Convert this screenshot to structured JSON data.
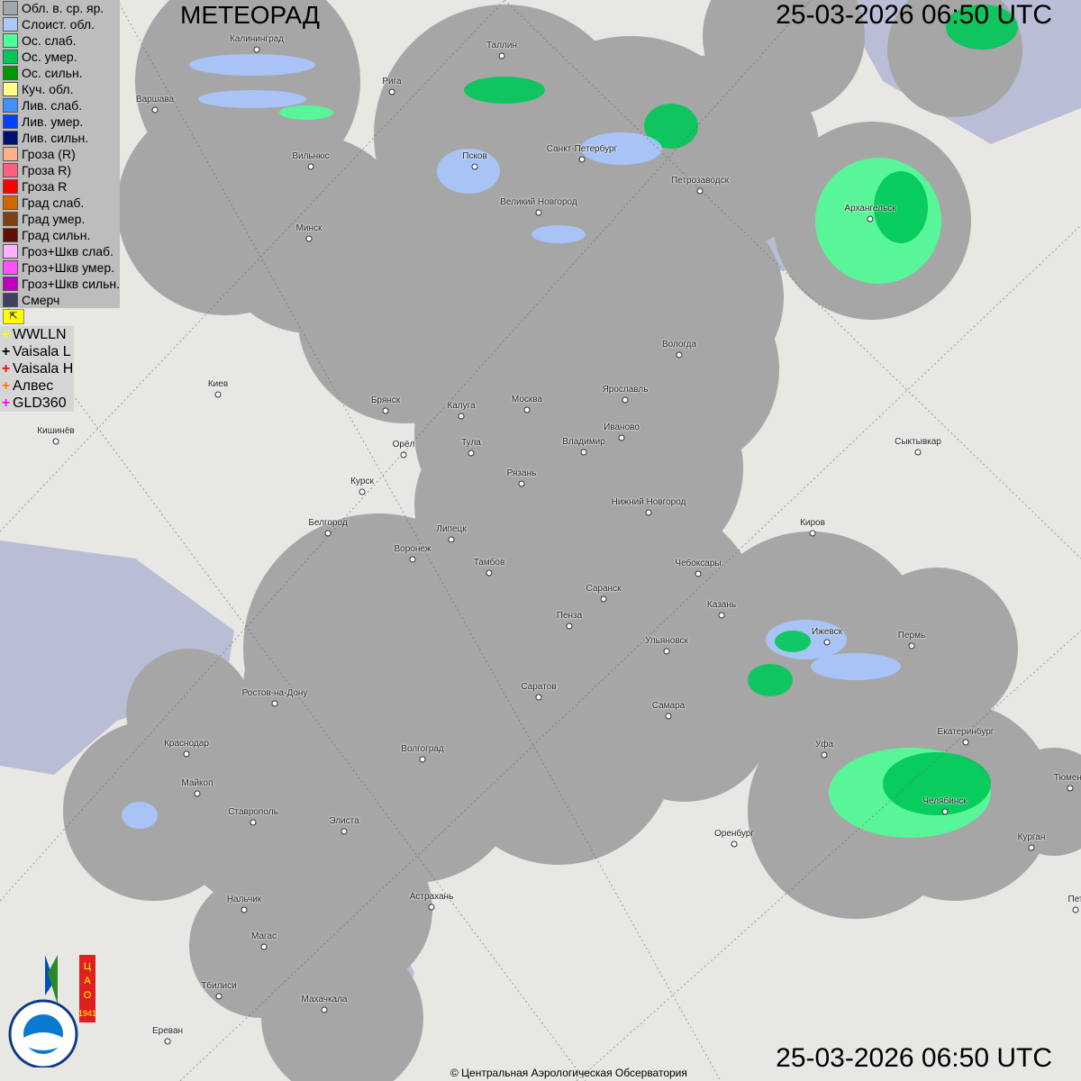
{
  "header": {
    "title": "МЕТЕОРАД",
    "timestamp_top": "25-03-2026  06:50 UTC",
    "timestamp_bottom": "25-03-2026  06:50 UTC"
  },
  "legend": [
    {
      "label": "Обл. в. ср. яр.",
      "color": "#a0a8ac"
    },
    {
      "label": "Слоист. обл.",
      "color": "#a8c8ff"
    },
    {
      "label": "Ос. слаб.",
      "color": "#50ff98"
    },
    {
      "label": "Ос. умер.",
      "color": "#00c858"
    },
    {
      "label": "Ос. сильн.",
      "color": "#009800"
    },
    {
      "label": "Куч. обл.",
      "color": "#ffff88"
    },
    {
      "label": "Лив. слаб.",
      "color": "#4090ff"
    },
    {
      "label": "Лив. умер.",
      "color": "#0040ff"
    },
    {
      "label": "Лив. сильн.",
      "color": "#001070"
    },
    {
      "label": "Гроза (R)",
      "color": "#ffb088"
    },
    {
      "label": "Гроза R)",
      "color": "#ff6080"
    },
    {
      "label": "Гроза R",
      "color": "#ff0000"
    },
    {
      "label": "Град слаб.",
      "color": "#d06800"
    },
    {
      "label": "Град умер.",
      "color": "#804010"
    },
    {
      "label": "Град сильн.",
      "color": "#601008"
    },
    {
      "label": "Гроз+Шкв слаб.",
      "color": "#ffb0ff"
    },
    {
      "label": "Гроз+Шкв умер.",
      "color": "#ff50ff"
    },
    {
      "label": "Гроз+Шкв сильн.",
      "color": "#c000c0"
    },
    {
      "label": "Смерч",
      "color": "#404060"
    }
  ],
  "lightning": [
    {
      "label": "WWLLN",
      "color": "#ffff00"
    },
    {
      "label": "Vaisala L",
      "color": "#000000"
    },
    {
      "label": "Vaisala H",
      "color": "#ff0000"
    },
    {
      "label": "Алвес",
      "color": "#ff8000"
    },
    {
      "label": "GLD360",
      "color": "#ff00ff"
    }
  ],
  "cities": [
    "Калининград",
    "Рига",
    "Таллин",
    "Варшава",
    "Вильнюс",
    "Псков",
    "Санкт-Петербург",
    "Петрозаводск",
    "Великий Новгород",
    "Архангельск",
    "Минск",
    "Вологда",
    "Киев",
    "Брянск",
    "Калуга",
    "Москва",
    "Ярославль",
    "Иваново",
    "Владимир",
    "Тула",
    "Орёл",
    "Кишинёв",
    "Сыктывкар",
    "Курск",
    "Рязань",
    "Нижний Новгород",
    "Белгород",
    "Липецк",
    "Киров",
    "Воронеж",
    "Тамбов",
    "Чебоксары",
    "Саранск",
    "Казань",
    "Пенза",
    "Ижевск",
    "Пермь",
    "Ульяновск",
    "Саратов",
    "Ростов-на-Дону",
    "Самара",
    "Уфа",
    "Екатеринбург",
    "Краснодар",
    "Волгоград",
    "Тюмень",
    "Майкоп",
    "Челябинск",
    "Ставрополь",
    "Элиста",
    "Оренбург",
    "Курган",
    "Астрахань",
    "Нальчик",
    "Магас",
    "Тбилиси",
    "Махачкала",
    "Ереван",
    "Пет"
  ],
  "logo": {
    "text": "РОСГИДРОМЕТ ROSHYDROMET",
    "cao": "ЦАО",
    "year": "1941"
  },
  "footer": {
    "copyright": "© Центральная Аэрологическая Обсерватория"
  },
  "colors": {
    "coverage": "#a6a6a6",
    "land": "#e9e7e3",
    "water": "#b9bdd6"
  }
}
